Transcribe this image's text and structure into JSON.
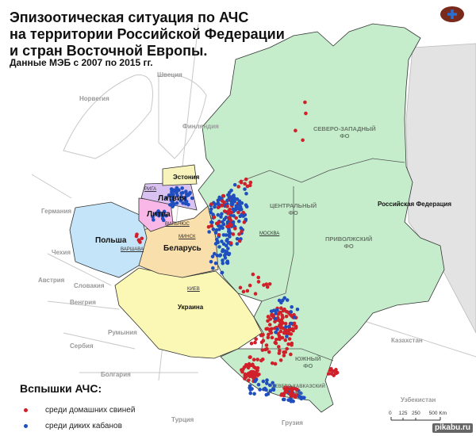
{
  "title": {
    "line1": "Эпизоотическая ситуация по АЧС",
    "line2": "на территории Российской Федерации",
    "line3": "и стран Восточной Европы.",
    "subtitle": "Данные МЭБ с 2007 по 2015 гг."
  },
  "countries_bg": [
    "Швеция",
    "Норвегия",
    "Финляндия",
    "Германия",
    "Чехия",
    "Австрия",
    "Словакия",
    "Венгрия",
    "Румыния",
    "Сербия",
    "Болгария",
    "Турция",
    "Грузия",
    "Казахстан",
    "Узбекистан"
  ],
  "countries_main": [
    "Эстония",
    "Латвия",
    "Литва",
    "Польша",
    "Беларусь",
    "Украина",
    "Российская Федерация"
  ],
  "federal_districts": [
    {
      "l1": "СЕВЕРО-ЗАПАДНЫЙ",
      "l2": "ФО"
    },
    {
      "l1": "ЦЕНТРАЛЬНЫЙ",
      "l2": "ФО"
    },
    {
      "l1": "ПРИВОЛЖСКИЙ",
      "l2": "ФО"
    },
    {
      "l1": "ЮЖНЫЙ",
      "l2": "ФО"
    },
    {
      "l1": "СЕВЕРО-КАВКАЗСКИЙ",
      "l2": "ФО"
    }
  ],
  "cities": [
    "МОСКВА",
    "МИНСК",
    "КИЕВ",
    "ВАРШАВА",
    "РИГА",
    "ВИЛЬНЮС"
  ],
  "legend": {
    "title": "Вспышки АЧС:",
    "items": [
      {
        "label": "среди домашних свиней",
        "color": "#d0202a"
      },
      {
        "label": "среди диких кабанов",
        "color": "#1f4fbf"
      }
    ]
  },
  "scale": {
    "ticks": [
      "0",
      "125",
      "250",
      "500"
    ],
    "unit": "Km"
  },
  "colors": {
    "russia": "#c5edcc",
    "ukraine": "#fbf7b4",
    "belarus": "#f9dfac",
    "poland": "#c4e4f9",
    "lithuania": "#f8b7e6",
    "latvia": "#d9c1f1",
    "estonia": "#f7f3bb",
    "grey": "#e3e3e3"
  },
  "watermark": "pikabu.ru"
}
